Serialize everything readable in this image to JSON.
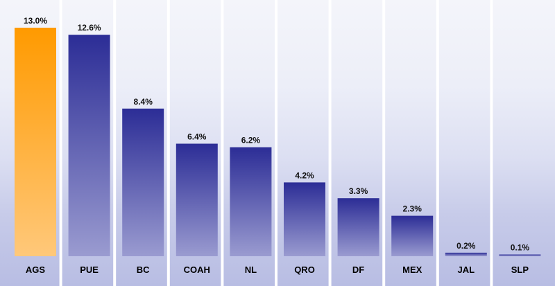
{
  "chart_data": {
    "type": "bar",
    "categories": [
      "AGS",
      "PUE",
      "BC",
      "COAH",
      "NL",
      "QRO",
      "DF",
      "MEX",
      "JAL",
      "SLP"
    ],
    "values": [
      13.0,
      12.6,
      8.4,
      6.4,
      6.2,
      4.2,
      3.3,
      2.3,
      0.2,
      0.1
    ],
    "value_labels": [
      "13.0%",
      "12.6%",
      "8.4%",
      "6.4%",
      "6.2%",
      "4.2%",
      "3.3%",
      "2.3%",
      "0.2%",
      "0.1%"
    ],
    "highlight_index": 0,
    "colors": {
      "highlight_top": "#ff9a00",
      "highlight_bottom": "#ffc87a",
      "bar_top": "#2c2d96",
      "bar_bottom": "#9a9bd0",
      "separator": "#ffffff"
    },
    "ylim": [
      0,
      13.0
    ],
    "grid": false,
    "legend": "none"
  }
}
